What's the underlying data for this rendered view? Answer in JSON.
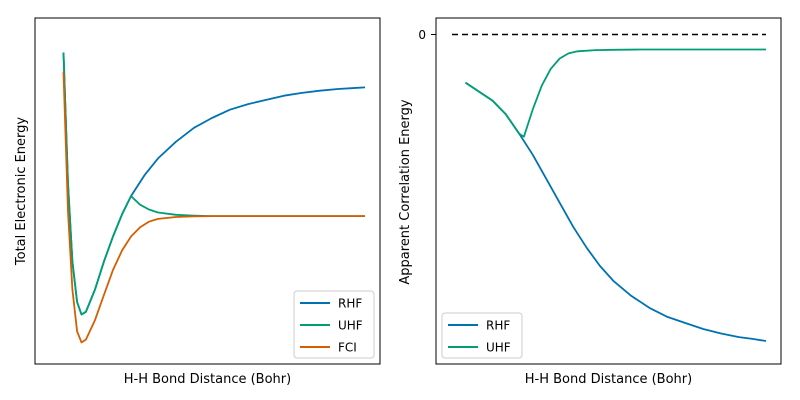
{
  "chart_data": [
    {
      "type": "line",
      "title": "",
      "xlabel": "H-H Bond Distance (Bohr)",
      "ylabel": "Total Electronic Energy",
      "ticks": {
        "x": [],
        "y": []
      },
      "xlim": [
        0,
        1
      ],
      "ylim": [
        -0.09,
        1.04
      ],
      "legend_placement": "lower-right",
      "grid": false,
      "series": [
        {
          "name": "RHF",
          "color": "#0072B2",
          "points": [
            [
              0.043,
              0.97
            ],
            [
              0.057,
              0.5
            ],
            [
              0.071,
              0.22
            ],
            [
              0.086,
              0.075
            ],
            [
              0.1,
              0.03
            ],
            [
              0.114,
              0.04
            ],
            [
              0.143,
              0.12
            ],
            [
              0.171,
              0.22
            ],
            [
              0.2,
              0.31
            ],
            [
              0.229,
              0.39
            ],
            [
              0.257,
              0.455
            ],
            [
              0.3,
              0.53
            ],
            [
              0.343,
              0.59
            ],
            [
              0.4,
              0.65
            ],
            [
              0.457,
              0.7
            ],
            [
              0.514,
              0.735
            ],
            [
              0.571,
              0.765
            ],
            [
              0.629,
              0.785
            ],
            [
              0.686,
              0.8
            ],
            [
              0.743,
              0.815
            ],
            [
              0.8,
              0.825
            ],
            [
              0.857,
              0.833
            ],
            [
              0.914,
              0.839
            ],
            [
              0.957,
              0.842
            ],
            [
              1.0,
              0.845
            ]
          ]
        },
        {
          "name": "UHF",
          "color": "#009E73",
          "points": [
            [
              0.043,
              0.97
            ],
            [
              0.057,
              0.5
            ],
            [
              0.071,
              0.22
            ],
            [
              0.086,
              0.075
            ],
            [
              0.1,
              0.03
            ],
            [
              0.114,
              0.04
            ],
            [
              0.143,
              0.12
            ],
            [
              0.171,
              0.22
            ],
            [
              0.2,
              0.31
            ],
            [
              0.229,
              0.39
            ],
            [
              0.257,
              0.455
            ],
            [
              0.286,
              0.424
            ],
            [
              0.314,
              0.407
            ],
            [
              0.343,
              0.396
            ],
            [
              0.4,
              0.388
            ],
            [
              0.457,
              0.385
            ],
            [
              0.514,
              0.383
            ],
            [
              0.571,
              0.383
            ],
            [
              0.686,
              0.383
            ],
            [
              0.8,
              0.383
            ],
            [
              1.0,
              0.383
            ]
          ]
        },
        {
          "name": "FCI",
          "color": "#D55E00",
          "points": [
            [
              0.043,
              0.9
            ],
            [
              0.057,
              0.4
            ],
            [
              0.071,
              0.12
            ],
            [
              0.086,
              -0.03
            ],
            [
              0.1,
              -0.07
            ],
            [
              0.114,
              -0.06
            ],
            [
              0.143,
              0.01
            ],
            [
              0.171,
              0.1
            ],
            [
              0.2,
              0.19
            ],
            [
              0.229,
              0.26
            ],
            [
              0.257,
              0.31
            ],
            [
              0.286,
              0.343
            ],
            [
              0.314,
              0.363
            ],
            [
              0.343,
              0.373
            ],
            [
              0.4,
              0.38
            ],
            [
              0.457,
              0.382
            ],
            [
              0.514,
              0.383
            ],
            [
              0.571,
              0.383
            ],
            [
              0.686,
              0.383
            ],
            [
              0.8,
              0.383
            ],
            [
              1.0,
              0.383
            ]
          ]
        }
      ]
    },
    {
      "type": "line",
      "title": "",
      "xlabel": "H-H Bond Distance (Bohr)",
      "ylabel": "Apparent Correlation Energy",
      "ticks": {
        "x": [],
        "y": [
          "0"
        ]
      },
      "xlim": [
        0,
        1
      ],
      "ylim": [
        -1.0,
        0.05
      ],
      "legend_placement": "lower-left",
      "grid": false,
      "reference_line": {
        "y": 0,
        "style": "dashed",
        "color": "#000000"
      },
      "series": [
        {
          "name": "RHF",
          "color": "#0072B2",
          "points": [
            [
              0.043,
              -0.11
            ],
            [
              0.086,
              -0.14
            ],
            [
              0.129,
              -0.17
            ],
            [
              0.171,
              -0.215
            ],
            [
              0.214,
              -0.28
            ],
            [
              0.257,
              -0.35
            ],
            [
              0.3,
              -0.43
            ],
            [
              0.343,
              -0.51
            ],
            [
              0.386,
              -0.59
            ],
            [
              0.429,
              -0.66
            ],
            [
              0.471,
              -0.72
            ],
            [
              0.514,
              -0.77
            ],
            [
              0.571,
              -0.82
            ],
            [
              0.629,
              -0.86
            ],
            [
              0.686,
              -0.89
            ],
            [
              0.743,
              -0.91
            ],
            [
              0.8,
              -0.93
            ],
            [
              0.857,
              -0.945
            ],
            [
              0.914,
              -0.957
            ],
            [
              0.957,
              -0.963
            ],
            [
              1.0,
              -0.97
            ]
          ]
        },
        {
          "name": "UHF",
          "color": "#009E73",
          "points": [
            [
              0.043,
              -0.11
            ],
            [
              0.086,
              -0.14
            ],
            [
              0.129,
              -0.17
            ],
            [
              0.171,
              -0.215
            ],
            [
              0.214,
              -0.28
            ],
            [
              0.229,
              -0.29
            ],
            [
              0.257,
              -0.2
            ],
            [
              0.286,
              -0.12
            ],
            [
              0.314,
              -0.065
            ],
            [
              0.343,
              -0.03
            ],
            [
              0.371,
              -0.013
            ],
            [
              0.4,
              -0.006
            ],
            [
              0.457,
              -0.002
            ],
            [
              0.514,
              -0.001
            ],
            [
              0.6,
              0
            ],
            [
              0.8,
              0
            ],
            [
              1.0,
              0
            ]
          ]
        }
      ]
    }
  ]
}
